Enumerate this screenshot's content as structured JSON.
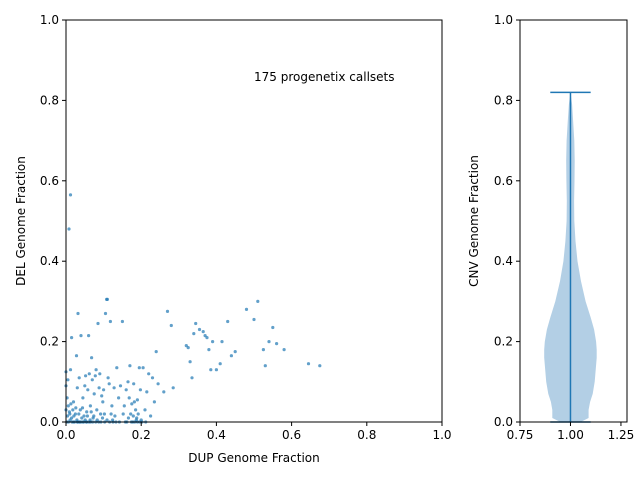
{
  "chart_data": [
    {
      "type": "scatter",
      "xlabel": "DUP Genome Fraction",
      "ylabel": "DEL Genome Fraction",
      "annotation": "175 progenetix callsets",
      "xlim": [
        0,
        1
      ],
      "ylim": [
        0,
        1
      ],
      "xticks": [
        "0.0",
        "0.2",
        "0.4",
        "0.6",
        "0.8",
        "1.0"
      ],
      "yticks": [
        "0.0",
        "0.2",
        "0.4",
        "0.6",
        "0.8",
        "1.0"
      ],
      "grid": false,
      "color": "#1f77b4",
      "points": [
        [
          0.0,
          0.125
        ],
        [
          0.005,
          0.105
        ],
        [
          0.008,
          0.48
        ],
        [
          0.012,
          0.565
        ],
        [
          0.0,
          0.09
        ],
        [
          0.003,
          0.06
        ],
        [
          0.006,
          0.04
        ],
        [
          0.01,
          0.02
        ],
        [
          0.015,
          0.01
        ],
        [
          0.02,
          0.0
        ],
        [
          0.012,
          0.13
        ],
        [
          0.015,
          0.21
        ],
        [
          0.02,
          0.05
        ],
        [
          0.025,
          0.02
        ],
        [
          0.028,
          0.165
        ],
        [
          0.03,
          0.085
        ],
        [
          0.032,
          0.27
        ],
        [
          0.035,
          0.11
        ],
        [
          0.038,
          0.03
        ],
        [
          0.04,
          0.0
        ],
        [
          0.04,
          0.215
        ],
        [
          0.045,
          0.06
        ],
        [
          0.048,
          0.015
        ],
        [
          0.05,
          0.09
        ],
        [
          0.052,
          0.115
        ],
        [
          0.055,
          0.025
        ],
        [
          0.058,
          0.08
        ],
        [
          0.06,
          0.215
        ],
        [
          0.062,
          0.12
        ],
        [
          0.065,
          0.04
        ],
        [
          0.068,
          0.16
        ],
        [
          0.07,
          0.105
        ],
        [
          0.072,
          0.01
        ],
        [
          0.075,
          0.07
        ],
        [
          0.078,
          0.115
        ],
        [
          0.08,
          0.13
        ],
        [
          0.082,
          0.03
        ],
        [
          0.085,
          0.245
        ],
        [
          0.088,
          0.085
        ],
        [
          0.09,
          0.12
        ],
        [
          0.092,
          0.02
        ],
        [
          0.095,
          0.065
        ],
        [
          0.098,
          0.05
        ],
        [
          0.1,
          0.08
        ],
        [
          0.102,
          0.02
        ],
        [
          0.105,
          0.27
        ],
        [
          0.108,
          0.305
        ],
        [
          0.11,
          0.305
        ],
        [
          0.112,
          0.11
        ],
        [
          0.115,
          0.095
        ],
        [
          0.118,
          0.25
        ],
        [
          0.12,
          0.02
        ],
        [
          0.122,
          0.04
        ],
        [
          0.125,
          0.0
        ],
        [
          0.128,
          0.085
        ],
        [
          0.13,
          0.015
        ],
        [
          0.135,
          0.135
        ],
        [
          0.14,
          0.06
        ],
        [
          0.145,
          0.09
        ],
        [
          0.15,
          0.25
        ],
        [
          0.152,
          0.02
        ],
        [
          0.155,
          0.04
        ],
        [
          0.16,
          0.08
        ],
        [
          0.162,
          0.0
        ],
        [
          0.165,
          0.1
        ],
        [
          0.168,
          0.06
        ],
        [
          0.17,
          0.14
        ],
        [
          0.172,
          0.02
        ],
        [
          0.175,
          0.045
        ],
        [
          0.178,
          0.0
        ],
        [
          0.18,
          0.095
        ],
        [
          0.182,
          0.05
        ],
        [
          0.185,
          0.03
        ],
        [
          0.188,
          0.01
        ],
        [
          0.19,
          0.0
        ],
        [
          0.19,
          0.055
        ],
        [
          0.192,
          0.02
        ],
        [
          0.195,
          0.135
        ],
        [
          0.198,
          0.08
        ],
        [
          0.2,
          0.005
        ],
        [
          0.205,
          0.135
        ],
        [
          0.21,
          0.03
        ],
        [
          0.215,
          0.075
        ],
        [
          0.22,
          0.12
        ],
        [
          0.225,
          0.015
        ],
        [
          0.23,
          0.11
        ],
        [
          0.235,
          0.05
        ],
        [
          0.24,
          0.175
        ],
        [
          0.245,
          0.095
        ],
        [
          0.26,
          0.075
        ],
        [
          0.27,
          0.275
        ],
        [
          0.28,
          0.24
        ],
        [
          0.285,
          0.085
        ],
        [
          0.32,
          0.19
        ],
        [
          0.325,
          0.185
        ],
        [
          0.33,
          0.15
        ],
        [
          0.335,
          0.11
        ],
        [
          0.34,
          0.22
        ],
        [
          0.345,
          0.245
        ],
        [
          0.355,
          0.23
        ],
        [
          0.365,
          0.225
        ],
        [
          0.37,
          0.215
        ],
        [
          0.375,
          0.21
        ],
        [
          0.38,
          0.18
        ],
        [
          0.385,
          0.13
        ],
        [
          0.39,
          0.2
        ],
        [
          0.4,
          0.13
        ],
        [
          0.41,
          0.145
        ],
        [
          0.415,
          0.2
        ],
        [
          0.43,
          0.25
        ],
        [
          0.44,
          0.165
        ],
        [
          0.45,
          0.175
        ],
        [
          0.48,
          0.28
        ],
        [
          0.5,
          0.255
        ],
        [
          0.51,
          0.3
        ],
        [
          0.525,
          0.18
        ],
        [
          0.53,
          0.14
        ],
        [
          0.54,
          0.2
        ],
        [
          0.55,
          0.235
        ],
        [
          0.56,
          0.195
        ],
        [
          0.58,
          0.18
        ],
        [
          0.645,
          0.145
        ],
        [
          0.675,
          0.14
        ],
        [
          0.0,
          0.03
        ],
        [
          0.002,
          0.0
        ],
        [
          0.004,
          0.015
        ],
        [
          0.007,
          0.0
        ],
        [
          0.009,
          0.025
        ],
        [
          0.011,
          0.005
        ],
        [
          0.013,
          0.045
        ],
        [
          0.016,
          0.0
        ],
        [
          0.018,
          0.03
        ],
        [
          0.021,
          0.015
        ],
        [
          0.023,
          0.0
        ],
        [
          0.026,
          0.035
        ],
        [
          0.029,
          0.005
        ],
        [
          0.031,
          0.0
        ],
        [
          0.034,
          0.02
        ],
        [
          0.037,
          0.0
        ],
        [
          0.042,
          0.01
        ],
        [
          0.044,
          0.035
        ],
        [
          0.047,
          0.0
        ],
        [
          0.051,
          0.005
        ],
        [
          0.054,
          0.0
        ],
        [
          0.057,
          0.015
        ],
        [
          0.061,
          0.0
        ],
        [
          0.064,
          0.005
        ],
        [
          0.067,
          0.025
        ],
        [
          0.071,
          0.0
        ],
        [
          0.074,
          0.015
        ],
        [
          0.079,
          0.0
        ],
        [
          0.083,
          0.005
        ],
        [
          0.087,
          0.0
        ],
        [
          0.093,
          0.0
        ],
        [
          0.097,
          0.01
        ],
        [
          0.103,
          0.0
        ],
        [
          0.109,
          0.005
        ],
        [
          0.116,
          0.0
        ],
        [
          0.124,
          0.005
        ],
        [
          0.133,
          0.0
        ],
        [
          0.142,
          0.0
        ],
        [
          0.158,
          0.0
        ],
        [
          0.166,
          0.01
        ],
        [
          0.174,
          0.0
        ],
        [
          0.179,
          0.015
        ],
        [
          0.183,
          0.0
        ],
        [
          0.187,
          0.005
        ],
        [
          0.196,
          0.0
        ],
        [
          0.202,
          0.0
        ],
        [
          0.212,
          0.0
        ],
        [
          0.03,
          0.0
        ],
        [
          0.035,
          0.0
        ],
        [
          0.045,
          0.0
        ],
        [
          0.055,
          0.0
        ],
        [
          0.065,
          0.0
        ]
      ]
    },
    {
      "type": "violin",
      "ylabel": "CNV Genome Fraction",
      "xlim": [
        0.75,
        1.28
      ],
      "ylim": [
        0,
        1
      ],
      "xticks": [
        "0.75",
        "1.00",
        "1.25"
      ],
      "yticks": [
        "0.0",
        "0.2",
        "0.4",
        "0.6",
        "0.8",
        "1.0"
      ],
      "position": 1.0,
      "min": 0.0,
      "max": 0.82,
      "fill_color": "#b3cfe5",
      "line_color": "#1f77b4",
      "density": [
        [
          0.0,
          0.05
        ],
        [
          0.01,
          0.09
        ],
        [
          0.03,
          0.09
        ],
        [
          0.05,
          0.097
        ],
        [
          0.07,
          0.11
        ],
        [
          0.1,
          0.12
        ],
        [
          0.13,
          0.125
        ],
        [
          0.16,
          0.13
        ],
        [
          0.18,
          0.13
        ],
        [
          0.2,
          0.127
        ],
        [
          0.23,
          0.117
        ],
        [
          0.26,
          0.1
        ],
        [
          0.3,
          0.075
        ],
        [
          0.35,
          0.052
        ],
        [
          0.4,
          0.035
        ],
        [
          0.45,
          0.025
        ],
        [
          0.5,
          0.019
        ],
        [
          0.55,
          0.018
        ],
        [
          0.6,
          0.02
        ],
        [
          0.65,
          0.021
        ],
        [
          0.7,
          0.019
        ],
        [
          0.75,
          0.013
        ],
        [
          0.79,
          0.008
        ],
        [
          0.82,
          0.0
        ]
      ]
    }
  ]
}
